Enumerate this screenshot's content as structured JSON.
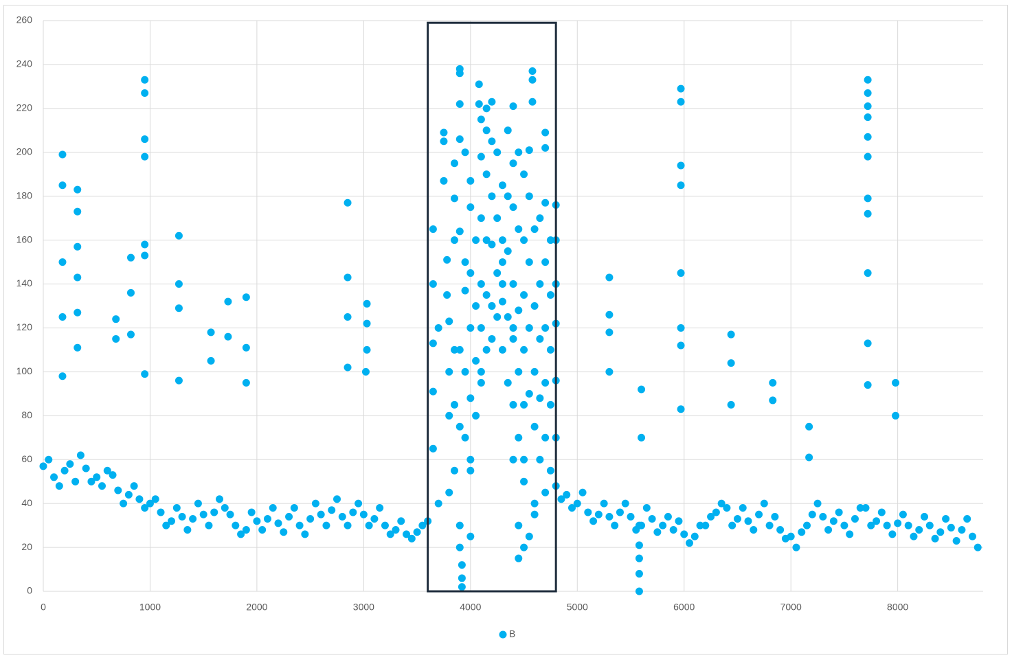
{
  "chart_data": {
    "type": "scatter",
    "x": [
      0,
      100,
      200,
      300,
      400,
      500,
      600,
      700,
      800,
      900,
      1000,
      1100,
      1200,
      1300,
      1400,
      1500,
      1600,
      1700,
      1800,
      1900,
      2000,
      2100,
      2200,
      2300,
      2400,
      2500,
      2600,
      2700,
      2800,
      2900,
      3000,
      3100,
      3200,
      3300,
      3400,
      3500,
      3600,
      3700,
      3800,
      3900,
      4000,
      4100,
      4200,
      4300,
      4400,
      4500,
      4600,
      4700,
      4800,
      4900,
      5000,
      5100,
      5200,
      5300,
      5400,
      5500,
      5600,
      5700,
      5800,
      5900,
      6000,
      6100,
      6200,
      6300,
      6400,
      6500,
      6600,
      6700,
      6800,
      6900,
      7000,
      7100,
      7200,
      7300,
      7400,
      7500,
      7600,
      7700,
      7800,
      7900,
      8000,
      8100,
      8200,
      8300,
      8400,
      8500,
      8600,
      8700,
      50,
      150,
      250,
      350,
      450,
      550,
      650,
      750,
      850,
      950,
      1050,
      1150,
      1250,
      1350,
      1450,
      1550,
      1650,
      1750,
      1850,
      1950,
      2050,
      2150,
      2250,
      2350,
      2450,
      2550,
      2650,
      2750,
      2850,
      2950,
      3050,
      3150,
      3250,
      3350,
      3450,
      3550,
      4850,
      4950,
      5050,
      5150,
      5250,
      5350,
      5450,
      5550,
      5650,
      5750,
      5850,
      5950,
      6050,
      6150,
      6250,
      6350,
      6450,
      6550,
      6650,
      6750,
      6850,
      6950,
      7050,
      7150,
      7250,
      7350,
      7450,
      7550,
      7650,
      7750,
      7850,
      7950,
      8050,
      8150,
      8250,
      8350,
      8450,
      8550,
      8650,
      8750,
      180,
      180,
      180,
      180,
      180,
      320,
      320,
      320,
      320,
      320,
      320,
      950,
      950,
      950,
      950,
      950,
      950,
      950,
      820,
      820,
      820,
      680,
      680,
      1270,
      1270,
      1270,
      1270,
      1570,
      1570,
      1730,
      1730,
      1900,
      1900,
      1900,
      2850,
      2850,
      2850,
      2850,
      3030,
      3030,
      3030,
      3020,
      5300,
      5300,
      5300,
      5300,
      5970,
      5970,
      5970,
      5970,
      5970,
      5970,
      5970,
      5970,
      6440,
      6440,
      6440,
      6830,
      6830,
      7170,
      7170,
      7720,
      7720,
      7720,
      7720,
      7720,
      7720,
      7720,
      7720,
      7720,
      7720,
      7720,
      7980,
      7980,
      5580,
      5580,
      5580,
      5580,
      5580,
      5600,
      5600,
      3650,
      3650,
      3650,
      3650,
      3650,
      3700,
      3750,
      3750,
      3750,
      3780,
      3780,
      3800,
      3800,
      3800,
      3850,
      3850,
      3850,
      3850,
      3850,
      3850,
      3900,
      3900,
      3900,
      3900,
      3900,
      3900,
      3900,
      3900,
      3920,
      3920,
      3920,
      3950,
      3950,
      3950,
      3950,
      3950,
      4000,
      4000,
      4000,
      4000,
      4000,
      4000,
      4000,
      4050,
      4050,
      4050,
      4050,
      4080,
      4080,
      4100,
      4100,
      4100,
      4100,
      4100,
      4100,
      4150,
      4150,
      4150,
      4150,
      4150,
      4150,
      4200,
      4200,
      4200,
      4200,
      4200,
      4200,
      4250,
      4250,
      4250,
      4250,
      4300,
      4300,
      4300,
      4300,
      4300,
      4350,
      4350,
      4350,
      4350,
      4350,
      4400,
      4400,
      4400,
      4400,
      4400,
      4400,
      4400,
      4450,
      4450,
      4450,
      4450,
      4450,
      4450,
      4450,
      4500,
      4500,
      4500,
      4500,
      4500,
      4500,
      4500,
      4550,
      4550,
      4550,
      4550,
      4550,
      4550,
      4580,
      4580,
      4580,
      4600,
      4600,
      4600,
      4600,
      4600,
      4650,
      4650,
      4650,
      4650,
      4650,
      4700,
      4700,
      4700,
      4700,
      4700,
      4700,
      4700,
      4750,
      4750,
      4750,
      4750,
      4750,
      4800,
      4800,
      4800,
      4800,
      4800,
      4800
    ],
    "series": [
      {
        "name": "B",
        "color": "#00b0f0",
        "values": [
          57,
          52,
          55,
          50,
          56,
          52,
          55,
          46,
          44,
          42,
          40,
          36,
          32,
          34,
          33,
          35,
          36,
          38,
          30,
          28,
          32,
          33,
          31,
          34,
          30,
          33,
          35,
          37,
          34,
          36,
          35,
          33,
          30,
          28,
          26,
          27,
          32,
          40,
          45,
          30,
          55,
          100,
          130,
          140,
          120,
          60,
          40,
          45,
          48,
          44,
          40,
          36,
          35,
          34,
          36,
          34,
          30,
          33,
          30,
          28,
          26,
          25,
          30,
          36,
          38,
          33,
          32,
          35,
          30,
          28,
          25,
          27,
          35,
          34,
          32,
          30,
          33,
          38,
          32,
          30,
          31,
          30,
          28,
          30,
          27,
          29,
          28,
          25,
          60,
          48,
          58,
          62,
          50,
          48,
          53,
          40,
          48,
          38,
          42,
          30,
          38,
          28,
          40,
          30,
          42,
          35,
          26,
          36,
          28,
          38,
          27,
          38,
          26,
          40,
          30,
          42,
          30,
          40,
          30,
          38,
          26,
          32,
          24,
          30,
          42,
          38,
          45,
          32,
          40,
          30,
          40,
          28,
          38,
          27,
          34,
          32,
          22,
          30,
          34,
          40,
          30,
          38,
          28,
          40,
          34,
          24,
          20,
          30,
          40,
          28,
          36,
          26,
          38,
          30,
          36,
          26,
          35,
          25,
          34,
          24,
          33,
          23,
          33,
          20,
          199,
          185,
          150,
          125,
          98,
          183,
          173,
          157,
          143,
          127,
          111,
          233,
          227,
          206,
          198,
          158,
          153,
          99,
          152,
          136,
          117,
          124,
          115,
          162,
          140,
          129,
          96,
          118,
          105,
          132,
          116,
          134,
          111,
          95,
          177,
          143,
          125,
          102,
          131,
          122,
          110,
          100,
          143,
          126,
          118,
          100,
          229,
          223,
          194,
          185,
          145,
          120,
          112,
          83,
          117,
          104,
          85,
          95,
          87,
          75,
          61,
          233,
          227,
          221,
          216,
          207,
          198,
          179,
          172,
          145,
          113,
          94,
          95,
          80,
          0,
          8,
          15,
          21,
          30,
          92,
          70,
          165,
          140,
          113,
          91,
          65,
          120,
          209,
          205,
          187,
          151,
          135,
          123,
          100,
          80,
          195,
          179,
          160,
          110,
          85,
          55,
          238,
          236,
          222,
          206,
          164,
          110,
          75,
          20,
          2,
          12,
          6,
          200,
          150,
          137,
          100,
          70,
          187,
          175,
          145,
          120,
          88,
          60,
          25,
          160,
          130,
          105,
          80,
          231,
          222,
          215,
          198,
          170,
          140,
          120,
          95,
          220,
          210,
          190,
          160,
          135,
          110,
          223,
          205,
          180,
          158,
          130,
          115,
          200,
          170,
          145,
          125,
          185,
          160,
          150,
          132,
          110,
          210,
          180,
          155,
          125,
          95,
          221,
          195,
          175,
          140,
          115,
          85,
          60,
          200,
          165,
          128,
          100,
          70,
          30,
          15,
          190,
          160,
          135,
          110,
          85,
          50,
          20,
          201,
          180,
          150,
          120,
          90,
          25,
          237,
          233,
          223,
          165,
          130,
          100,
          75,
          35,
          170,
          140,
          115,
          88,
          60,
          209,
          202,
          177,
          150,
          120,
          95,
          70,
          160,
          135,
          110,
          85,
          55,
          176,
          160,
          140,
          122,
          96,
          70
        ]
      }
    ],
    "xlim": [
      0,
      8800
    ],
    "ylim": [
      0,
      260
    ],
    "xticks": [
      0,
      1000,
      2000,
      3000,
      4000,
      5000,
      6000,
      7000,
      8000
    ],
    "yticks": [
      0,
      20,
      40,
      60,
      80,
      100,
      120,
      140,
      160,
      180,
      200,
      220,
      240,
      260
    ],
    "grid": true,
    "legend": "bottom",
    "highlight": {
      "xlim": [
        3600,
        4800
      ],
      "ylim": [
        0,
        259
      ],
      "color": "#1f2d3d"
    }
  }
}
